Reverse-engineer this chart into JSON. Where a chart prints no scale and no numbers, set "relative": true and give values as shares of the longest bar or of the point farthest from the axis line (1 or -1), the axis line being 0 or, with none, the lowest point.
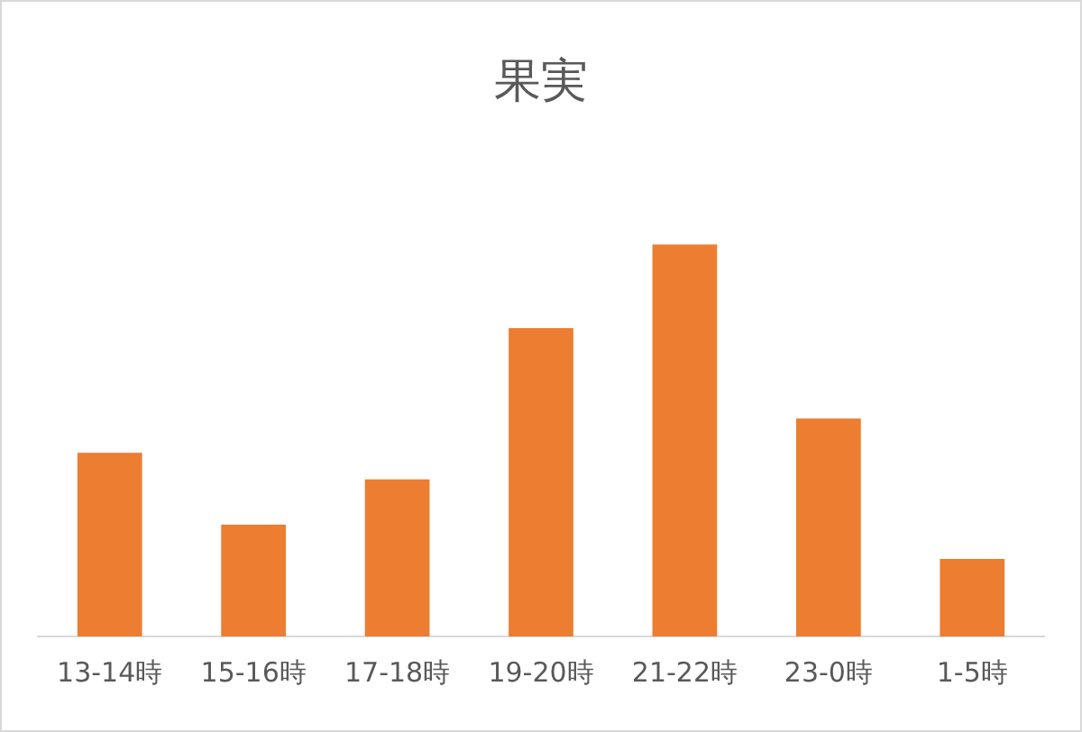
{
  "chart_data": {
    "type": "bar",
    "title": "果実",
    "categories": [
      "13-14時",
      "15-16時",
      "17-18時",
      "19-20時",
      "21-22時",
      "23-0時",
      "1-5時"
    ],
    "values": [
      0.469,
      0.285,
      0.401,
      0.787,
      1,
      0.556,
      0.198
    ],
    "color": "#ed7d31",
    "relative": true
  }
}
